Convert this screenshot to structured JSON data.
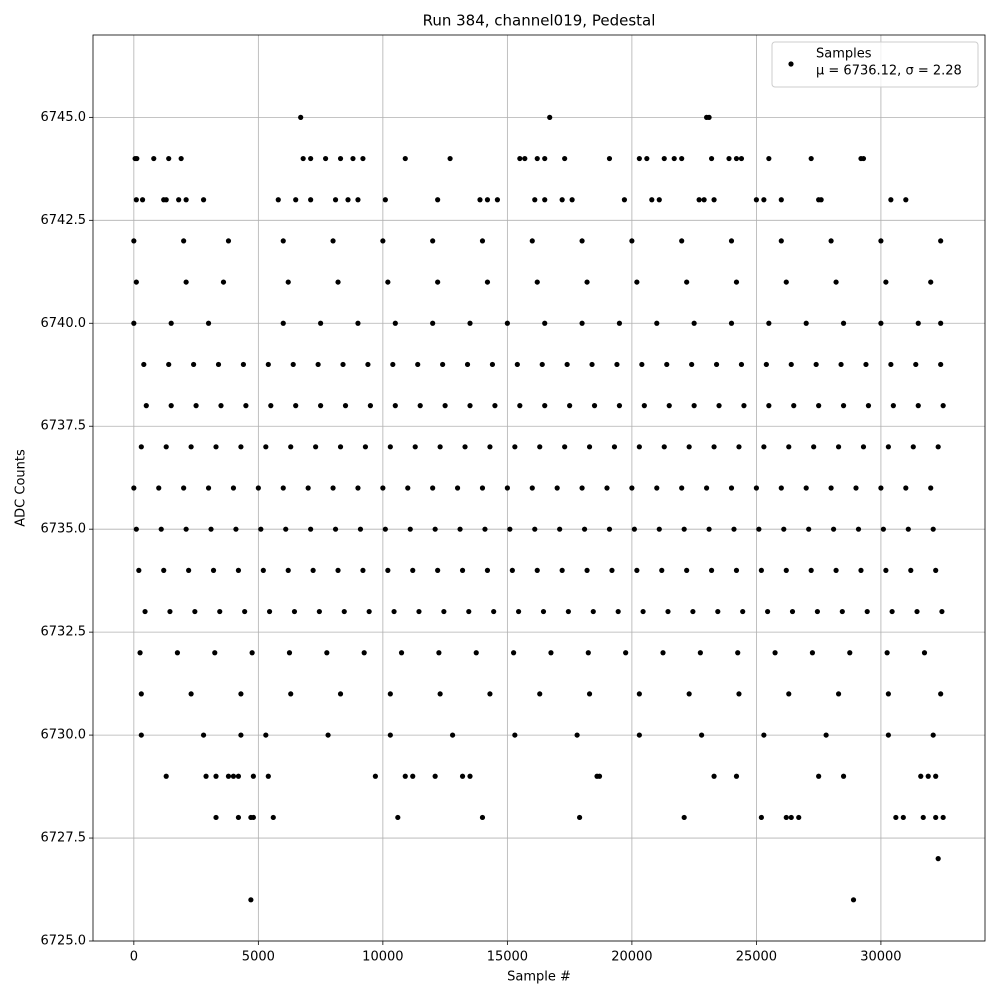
{
  "chart_data": {
    "type": "scatter",
    "title": "Run 384, channel019, Pedestal",
    "xlabel": "Sample #",
    "ylabel": "ADC Counts",
    "xlim": [
      -1640,
      34180
    ],
    "ylim": [
      6725,
      6747
    ],
    "xticks": [
      0,
      5000,
      10000,
      15000,
      20000,
      25000,
      30000
    ],
    "yticks": [
      {
        "value": 6725,
        "label": "6725.0"
      },
      6727.5,
      {
        "value": 6730,
        "label": "6730.0"
      },
      6732.5,
      {
        "value": 6735,
        "label": "6735.0"
      },
      6737.5,
      {
        "value": 6740,
        "label": "6740.0"
      },
      6742.5,
      {
        "value": 6745,
        "label": "6745.0"
      }
    ],
    "grid": true,
    "legend": "upper right",
    "legend_stats": "μ = 6736.12, σ = 2.28",
    "x": [
      0,
      1000,
      2000,
      3000,
      4000,
      5000,
      6000,
      7000,
      8000,
      9000,
      10000,
      11000,
      12000,
      13000,
      14000,
      15000,
      16000,
      17000,
      18000,
      19000,
      20000,
      21000,
      22000,
      23000,
      24000,
      25000,
      26000,
      27000,
      28000,
      29000,
      30000,
      31000,
      32000,
      300,
      1300,
      2300,
      3300,
      4300,
      5300,
      6300,
      7300,
      8300,
      9300,
      10300,
      11300,
      12300,
      13300,
      14300,
      15300,
      16300,
      17300,
      18300,
      19300,
      20300,
      21300,
      22300,
      23300,
      24300,
      25300,
      26300,
      27300,
      28300,
      29300,
      30300,
      31300,
      32300,
      500,
      1500,
      2500,
      3500,
      4500,
      5500,
      6500,
      7500,
      8500,
      9500,
      10500,
      11500,
      12500,
      13500,
      14500,
      15500,
      16500,
      17500,
      18500,
      19500,
      20500,
      21500,
      22500,
      23500,
      24500,
      25500,
      26500,
      27500,
      28500,
      29500,
      30500,
      31500,
      32500,
      200,
      1200,
      2200,
      3200,
      4200,
      5200,
      6200,
      7200,
      8200,
      9200,
      10200,
      11200,
      12200,
      13200,
      14200,
      15200,
      16200,
      17200,
      18200,
      19200,
      20200,
      21200,
      22200,
      23200,
      24200,
      25200,
      26200,
      27200,
      28200,
      29200,
      30200,
      31200,
      32200,
      100,
      1100,
      2100,
      3100,
      4100,
      5100,
      6100,
      7100,
      8100,
      9100,
      10100,
      11100,
      12100,
      13100,
      14100,
      15100,
      16100,
      17100,
      18100,
      19100,
      20100,
      21100,
      22100,
      23100,
      24100,
      25100,
      26100,
      27100,
      28100,
      29100,
      30100,
      31100,
      32100,
      400,
      1400,
      2400,
      3400,
      4400,
      5400,
      6400,
      7400,
      8400,
      9400,
      10400,
      11400,
      12400,
      13400,
      14400,
      15400,
      16400,
      17400,
      18400,
      19400,
      20400,
      21400,
      22400,
      23400,
      24400,
      25400,
      26400,
      27400,
      28400,
      29400,
      30400,
      31400,
      32400,
      450,
      1450,
      2450,
      3450,
      4450,
      5450,
      6450,
      7450,
      8450,
      9450,
      10450,
      11450,
      12450,
      13450,
      14450,
      15450,
      16450,
      17450,
      18450,
      19450,
      20450,
      21450,
      22450,
      23450,
      24450,
      25450,
      26450,
      27450,
      28450,
      29450,
      30450,
      31450,
      32450,
      0,
      1500,
      3000,
      6000,
      7500,
      9000,
      10500,
      12000,
      13500,
      15000,
      16500,
      18000,
      19500,
      21000,
      22500,
      24000,
      25500,
      27000,
      28500,
      30000,
      31500,
      32400,
      250,
      1750,
      3250,
      4750,
      6250,
      7750,
      9250,
      10750,
      12250,
      13750,
      15250,
      16750,
      18250,
      19750,
      21250,
      22750,
      24250,
      25750,
      27250,
      28750,
      30250,
      31750,
      0,
      2000,
      3800,
      6000,
      8000,
      10000,
      12000,
      14000,
      16000,
      18000,
      20000,
      22000,
      24000,
      26000,
      28000,
      30000,
      32400,
      100,
      2100,
      3600,
      6200,
      8200,
      10200,
      12200,
      14200,
      16200,
      18200,
      20200,
      22200,
      24200,
      26200,
      28200,
      30200,
      32000,
      300,
      2300,
      4300,
      6300,
      8300,
      10300,
      12300,
      14300,
      16300,
      18300,
      20300,
      22300,
      24300,
      26300,
      28300,
      30300,
      32400,
      300,
      2800,
      4300,
      5300,
      7800,
      10300,
      12800,
      15300,
      17800,
      20300,
      22800,
      25300,
      27800,
      30300,
      32100,
      6700,
      16700,
      23000,
      23100,
      50,
      120,
      800,
      1400,
      1900,
      6800,
      7100,
      7700,
      8300,
      8800,
      9200,
      10900,
      12700,
      15500,
      15700,
      16200,
      16500,
      17300,
      19100,
      20300,
      20600,
      21300,
      21700,
      22000,
      23200,
      23900,
      24200,
      24400,
      25500,
      27200,
      29200,
      29300,
      100,
      350,
      1200,
      1300,
      1800,
      2100,
      2800,
      5800,
      6500,
      7100,
      8100,
      8600,
      9000,
      10100,
      12200,
      13900,
      14200,
      14600,
      16100,
      16500,
      17200,
      17600,
      19700,
      20800,
      21100,
      22700,
      22900,
      23300,
      25000,
      25300,
      26000,
      27500,
      27600,
      31000,
      30400,
      1300,
      2900,
      3300,
      3800,
      4000,
      4200,
      4800,
      5400,
      9700,
      10900,
      11200,
      12100,
      13200,
      13500,
      18600,
      18700,
      23300,
      24200,
      27500,
      28500,
      31600,
      31900,
      32200,
      3300,
      4200,
      4700,
      4800,
      5600,
      10600,
      14000,
      17900,
      22100,
      25200,
      26200,
      26400,
      26700,
      30600,
      30900,
      31700,
      32200,
      32500,
      32300,
      4700,
      28900
    ],
    "series": [
      {
        "name": "Samples",
        "color": "#000000",
        "values": [
          6736,
          6736,
          6736,
          6736,
          6736,
          6736,
          6736,
          6736,
          6736,
          6736,
          6736,
          6736,
          6736,
          6736,
          6736,
          6736,
          6736,
          6736,
          6736,
          6736,
          6736,
          6736,
          6736,
          6736,
          6736,
          6736,
          6736,
          6736,
          6736,
          6736,
          6736,
          6736,
          6736,
          6737,
          6737,
          6737,
          6737,
          6737,
          6737,
          6737,
          6737,
          6737,
          6737,
          6737,
          6737,
          6737,
          6737,
          6737,
          6737,
          6737,
          6737,
          6737,
          6737,
          6737,
          6737,
          6737,
          6737,
          6737,
          6737,
          6737,
          6737,
          6737,
          6737,
          6737,
          6737,
          6737,
          6738,
          6738,
          6738,
          6738,
          6738,
          6738,
          6738,
          6738,
          6738,
          6738,
          6738,
          6738,
          6738,
          6738,
          6738,
          6738,
          6738,
          6738,
          6738,
          6738,
          6738,
          6738,
          6738,
          6738,
          6738,
          6738,
          6738,
          6738,
          6738,
          6738,
          6738,
          6738,
          6738,
          6734,
          6734,
          6734,
          6734,
          6734,
          6734,
          6734,
          6734,
          6734,
          6734,
          6734,
          6734,
          6734,
          6734,
          6734,
          6734,
          6734,
          6734,
          6734,
          6734,
          6734,
          6734,
          6734,
          6734,
          6734,
          6734,
          6734,
          6734,
          6734,
          6734,
          6734,
          6734,
          6734,
          6735,
          6735,
          6735,
          6735,
          6735,
          6735,
          6735,
          6735,
          6735,
          6735,
          6735,
          6735,
          6735,
          6735,
          6735,
          6735,
          6735,
          6735,
          6735,
          6735,
          6735,
          6735,
          6735,
          6735,
          6735,
          6735,
          6735,
          6735,
          6735,
          6735,
          6735,
          6735,
          6735,
          6739,
          6739,
          6739,
          6739,
          6739,
          6739,
          6739,
          6739,
          6739,
          6739,
          6739,
          6739,
          6739,
          6739,
          6739,
          6739,
          6739,
          6739,
          6739,
          6739,
          6739,
          6739,
          6739,
          6739,
          6739,
          6739,
          6739,
          6739,
          6739,
          6739,
          6739,
          6739,
          6739,
          6733,
          6733,
          6733,
          6733,
          6733,
          6733,
          6733,
          6733,
          6733,
          6733,
          6733,
          6733,
          6733,
          6733,
          6733,
          6733,
          6733,
          6733,
          6733,
          6733,
          6733,
          6733,
          6733,
          6733,
          6733,
          6733,
          6733,
          6733,
          6733,
          6733,
          6733,
          6733,
          6733,
          6740,
          6740,
          6740,
          6740,
          6740,
          6740,
          6740,
          6740,
          6740,
          6740,
          6740,
          6740,
          6740,
          6740,
          6740,
          6740,
          6740,
          6740,
          6740,
          6740,
          6740,
          6740,
          6732,
          6732,
          6732,
          6732,
          6732,
          6732,
          6732,
          6732,
          6732,
          6732,
          6732,
          6732,
          6732,
          6732,
          6732,
          6732,
          6732,
          6732,
          6732,
          6732,
          6732,
          6732,
          6742,
          6742,
          6742,
          6742,
          6742,
          6742,
          6742,
          6742,
          6742,
          6742,
          6742,
          6742,
          6742,
          6742,
          6742,
          6742,
          6742,
          6741,
          6741,
          6741,
          6741,
          6741,
          6741,
          6741,
          6741,
          6741,
          6741,
          6741,
          6741,
          6741,
          6741,
          6741,
          6741,
          6741,
          6731,
          6731,
          6731,
          6731,
          6731,
          6731,
          6731,
          6731,
          6731,
          6731,
          6731,
          6731,
          6731,
          6731,
          6731,
          6731,
          6731,
          6730,
          6730,
          6730,
          6730,
          6730,
          6730,
          6730,
          6730,
          6730,
          6730,
          6730,
          6730,
          6730,
          6730,
          6730,
          6745,
          6745,
          6745,
          6745,
          6744,
          6744,
          6744,
          6744,
          6744,
          6744,
          6744,
          6744,
          6744,
          6744,
          6744,
          6744,
          6744,
          6744,
          6744,
          6744,
          6744,
          6744,
          6744,
          6744,
          6744,
          6744,
          6744,
          6744,
          6744,
          6744,
          6744,
          6744,
          6744,
          6744,
          6744,
          6744,
          6743,
          6743,
          6743,
          6743,
          6743,
          6743,
          6743,
          6743,
          6743,
          6743,
          6743,
          6743,
          6743,
          6743,
          6743,
          6743,
          6743,
          6743,
          6743,
          6743,
          6743,
          6743,
          6743,
          6743,
          6743,
          6743,
          6743,
          6743,
          6743,
          6743,
          6743,
          6743,
          6743,
          6743,
          6743,
          6729,
          6729,
          6729,
          6729,
          6729,
          6729,
          6729,
          6729,
          6729,
          6729,
          6729,
          6729,
          6729,
          6729,
          6729,
          6729,
          6729,
          6729,
          6729,
          6729,
          6729,
          6729,
          6729,
          6728,
          6728,
          6728,
          6728,
          6728,
          6728,
          6728,
          6728,
          6728,
          6728,
          6728,
          6728,
          6728,
          6728,
          6728,
          6728,
          6728,
          6728,
          6727,
          6726,
          6726
        ]
      }
    ]
  }
}
